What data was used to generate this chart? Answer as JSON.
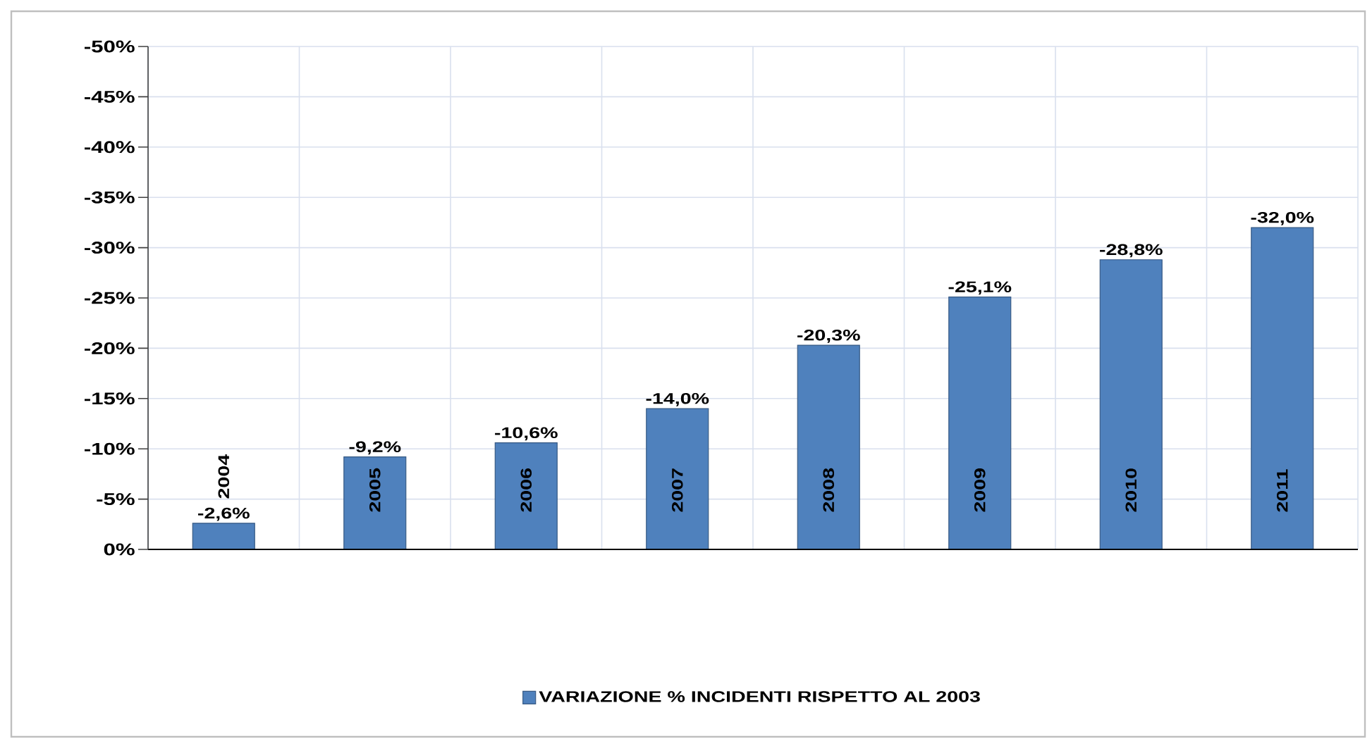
{
  "chart_data": {
    "type": "bar",
    "categories": [
      "2004",
      "2005",
      "2006",
      "2007",
      "2008",
      "2009",
      "2010",
      "2011"
    ],
    "series": [
      {
        "name": "VARIAZIONE % INCIDENTI RISPETTO AL 2003",
        "color": "#4f81bd",
        "values": [
          -2.6,
          -9.2,
          -10.6,
          -14.0,
          -20.3,
          -25.1,
          -28.8,
          -32.0
        ],
        "value_labels": [
          "-2,6%",
          "-9,2%",
          "-10,6%",
          "-14,0%",
          "-20,3%",
          "-25,1%",
          "-28,8%",
          "-32,0%"
        ]
      }
    ],
    "ylim": [
      0,
      -50
    ],
    "yticks": [
      {
        "value": 0,
        "label": "0%"
      },
      {
        "value": -5,
        "label": "-5%"
      },
      {
        "value": -10,
        "label": "-10%"
      },
      {
        "value": -15,
        "label": "-15%"
      },
      {
        "value": -20,
        "label": "-20%"
      },
      {
        "value": -25,
        "label": "-25%"
      },
      {
        "value": -30,
        "label": "-30%"
      },
      {
        "value": -35,
        "label": "-35%"
      },
      {
        "value": -40,
        "label": "-40%"
      },
      {
        "value": -45,
        "label": "-45%"
      },
      {
        "value": -50,
        "label": "-50%"
      }
    ],
    "grid": true,
    "legend": "bottom"
  }
}
